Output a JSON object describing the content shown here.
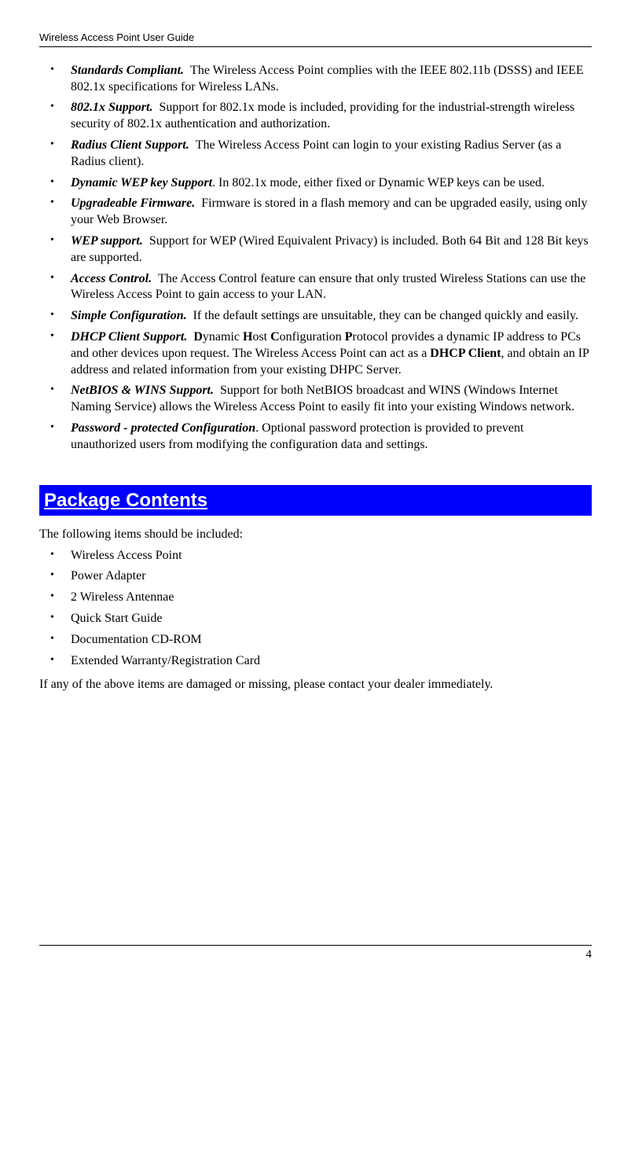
{
  "header": {
    "title": "Wireless Access Point User Guide"
  },
  "features": [
    {
      "title": "Standards Compliant.",
      "desc": "The Wireless Access Point complies with the IEEE 802.11b (DSSS) and IEEE 802.1x specifications for Wireless LANs."
    },
    {
      "title": "802.1x Support.",
      "desc": "Support for 802.1x mode is included, providing for the industrial-strength wireless security of 802.1x authentication and authorization."
    },
    {
      "title": "Radius Client Support.",
      "desc": "The Wireless Access Point can login to your existing Radius Server (as a Radius client)."
    },
    {
      "title": "Dynamic WEP key Support",
      "desc": ".  In 802.1x mode, either fixed or Dynamic WEP keys can be used."
    },
    {
      "title": "Upgradeable Firmware.",
      "desc": "Firmware is stored in a flash memory and can be upgraded easily, using only your Web Browser."
    },
    {
      "title": "WEP support.",
      "desc": "Support for WEP (Wired Equivalent Privacy) is included. Both 64 Bit and 128 Bit keys are supported."
    },
    {
      "title": "Access Control.",
      "desc": "The Access Control feature can ensure that only trusted Wireless Stations can use the Wireless Access Point to gain access to your LAN."
    },
    {
      "title": "Simple Configuration.",
      "desc": "If the default settings are unsuitable, they can be changed quickly and easily."
    },
    {
      "title": "DHCP Client Support.",
      "desc_html": "<b>D</b>ynamic <b>H</b>ost <b>C</b>onfiguration <b>P</b>rotocol provides a dynamic IP address to PCs and other devices upon request. The Wireless Access Point can act as a <b>DHCP Client</b>, and obtain an IP address and related information from your existing DHPC Server."
    },
    {
      "title": "NetBIOS & WINS Support.",
      "desc": "Support for both NetBIOS broadcast and WINS (Windows Internet Naming Service) allows the Wireless Access Point to easily fit into your existing Windows network."
    },
    {
      "title": "Password - protected Configuration",
      "desc": ".  Optional password protection is provided to prevent unauthorized users from modifying the configuration data and settings."
    }
  ],
  "section": {
    "title": "Package Contents",
    "intro": "The following items should be included:",
    "items": [
      "Wireless Access Point",
      "Power Adapter",
      "2 Wireless Antennae",
      "Quick Start Guide",
      "Documentation CD-ROM",
      "Extended Warranty/Registration Card"
    ],
    "closing": "If any of the above items are damaged or missing, please contact your dealer immediately."
  },
  "footer": {
    "page": "4"
  }
}
